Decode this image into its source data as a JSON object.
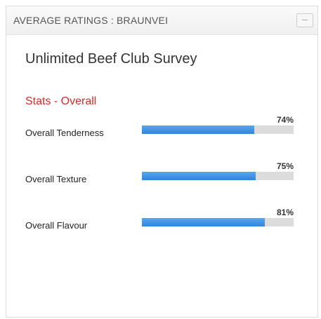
{
  "header": {
    "title": "AVERAGE RATINGS : BRAUNVEI"
  },
  "survey_title": "Unlimited Beef Club Survey",
  "section_title": "Stats - Overall",
  "items": [
    {
      "label": "Overall Tenderness",
      "value": 74,
      "value_label": "74%"
    },
    {
      "label": "Overall Texture",
      "value": 75,
      "value_label": "75%"
    },
    {
      "label": "Overall Flavour",
      "value": 81,
      "value_label": "81%"
    }
  ]
}
